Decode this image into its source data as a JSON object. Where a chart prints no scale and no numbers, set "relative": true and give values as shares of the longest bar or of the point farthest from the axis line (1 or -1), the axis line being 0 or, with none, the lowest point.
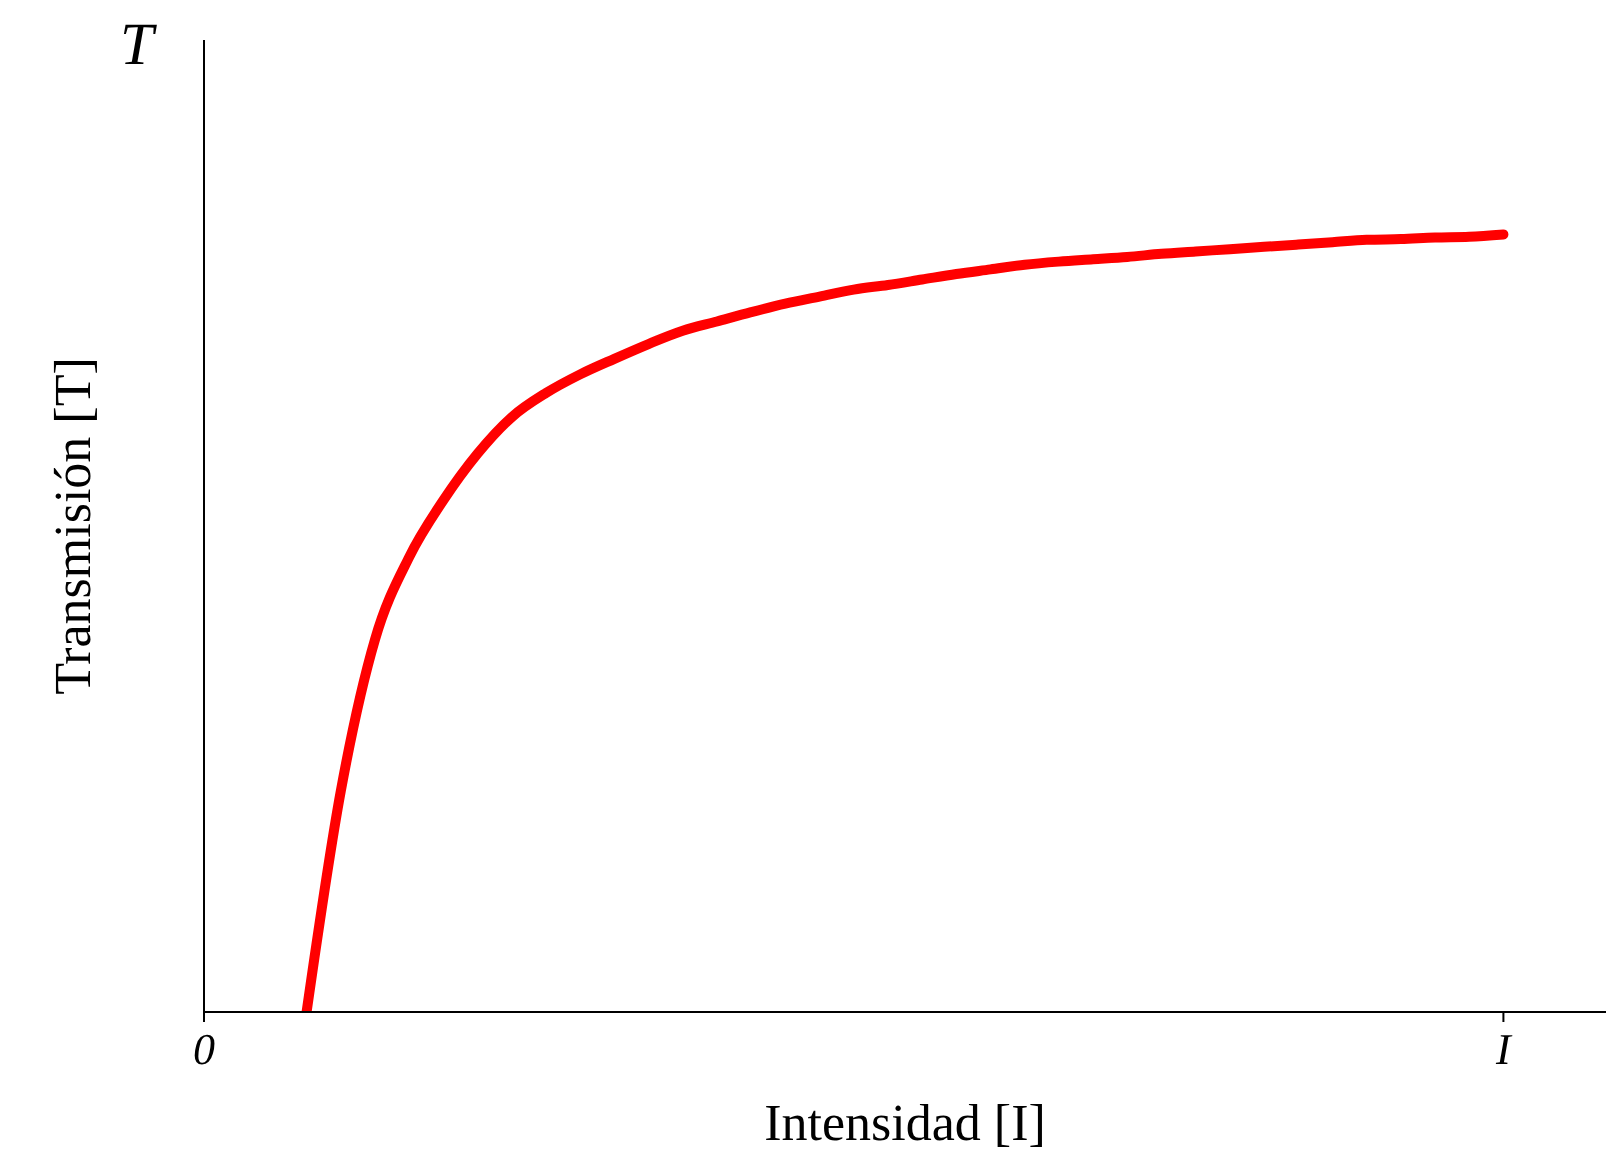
{
  "chart_data": {
    "type": "line",
    "relative": true,
    "xlabel": "Intensidad [I]",
    "ylabel": "Transmisión [T]",
    "annotations": [
      "T"
    ],
    "categories": [
      "0",
      null,
      null,
      null,
      null,
      null,
      null,
      null,
      null,
      null,
      null,
      null,
      null,
      null,
      null,
      null,
      null,
      null,
      null,
      null,
      null,
      null,
      null,
      null,
      null,
      null,
      null,
      null,
      null,
      null,
      null,
      null,
      null,
      null,
      null,
      null,
      null,
      null,
      "I",
      null,
      null,
      null
    ],
    "series": [
      {
        "color": "#ff0000",
        "values": [
          null,
          null,
          null,
          0,
          0.284,
          0.479,
          0.585,
          0.658,
          0.718,
          0.765,
          0.796,
          0.82,
          0.84,
          0.859,
          0.876,
          0.888,
          0.9,
          0.911,
          0.92,
          0.929,
          0.935,
          0.942,
          0.949,
          0.955,
          0.961,
          0.965,
          0.968,
          0.971,
          0.975,
          0.978,
          0.981,
          0.984,
          0.987,
          0.99,
          0.993,
          0.994,
          0.996,
          0.997,
          1,
          null,
          null,
          null
        ]
      }
    ]
  }
}
